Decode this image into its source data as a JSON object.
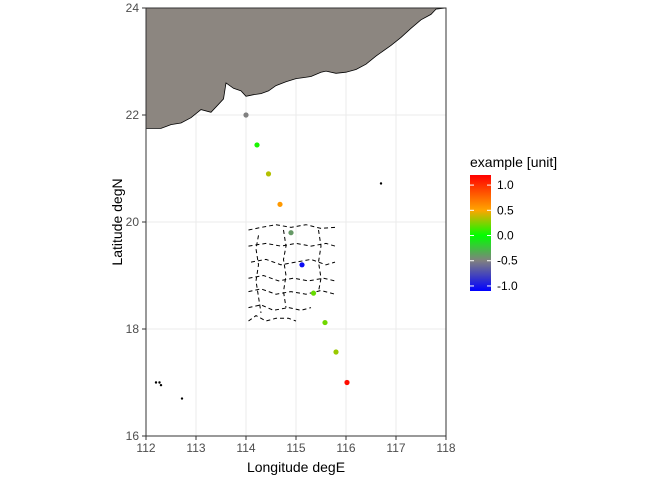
{
  "chart_data": {
    "type": "scatter",
    "xlabel": "Longitude degE",
    "ylabel": "Latitude degN",
    "xlim": [
      112,
      118
    ],
    "ylim": [
      16,
      24
    ],
    "x_ticks": [
      112,
      113,
      114,
      115,
      116,
      117,
      118
    ],
    "y_ticks": [
      16,
      18,
      20,
      22,
      24
    ],
    "grid": true,
    "legend": {
      "title": "example [unit]",
      "placement": "right",
      "range": [
        -1.1,
        1.2
      ],
      "ticks": [
        1.0,
        0.5,
        0.0,
        -0.5,
        -1.0
      ],
      "tick_labels": [
        "1.0",
        "0.5",
        "0.0",
        "-0.5",
        "-1.0"
      ],
      "gradient_colors": [
        "#ff0000",
        "#ffa500",
        "#00ff00",
        "#808080",
        "#0000ff"
      ]
    },
    "points": [
      {
        "lon": 114.0,
        "lat": 22.0,
        "value": -0.5
      },
      {
        "lon": 114.22,
        "lat": 21.44,
        "value": 0.05
      },
      {
        "lon": 114.45,
        "lat": 20.9,
        "value": 0.35
      },
      {
        "lon": 114.68,
        "lat": 20.33,
        "value": 0.55
      },
      {
        "lon": 114.9,
        "lat": 19.8,
        "value": -0.4
      },
      {
        "lon": 115.12,
        "lat": 19.2,
        "value": -1.05
      },
      {
        "lon": 115.35,
        "lat": 18.67,
        "value": 0.2
      },
      {
        "lon": 115.58,
        "lat": 18.12,
        "value": 0.22
      },
      {
        "lon": 115.8,
        "lat": 17.57,
        "value": 0.3
      },
      {
        "lon": 116.02,
        "lat": 17.0,
        "value": 1.15
      }
    ],
    "land_color": "#8c8680",
    "land_outline": [
      [
        112,
        24
      ],
      [
        118,
        24
      ],
      [
        117.8,
        23.98
      ],
      [
        117.7,
        23.88
      ],
      [
        117.5,
        23.78
      ],
      [
        117.3,
        23.62
      ],
      [
        117.1,
        23.45
      ],
      [
        116.9,
        23.3
      ],
      [
        116.6,
        23.1
      ],
      [
        116.4,
        22.95
      ],
      [
        116.2,
        22.85
      ],
      [
        116.0,
        22.8
      ],
      [
        115.8,
        22.78
      ],
      [
        115.6,
        22.82
      ],
      [
        115.5,
        22.8
      ],
      [
        115.3,
        22.72
      ],
      [
        115.15,
        22.7
      ],
      [
        115.0,
        22.68
      ],
      [
        114.8,
        22.62
      ],
      [
        114.6,
        22.55
      ],
      [
        114.45,
        22.45
      ],
      [
        114.3,
        22.4
      ],
      [
        114.15,
        22.38
      ],
      [
        114.0,
        22.35
      ],
      [
        113.9,
        22.45
      ],
      [
        113.75,
        22.5
      ],
      [
        113.6,
        22.6
      ],
      [
        113.55,
        22.3
      ],
      [
        113.45,
        22.2
      ],
      [
        113.3,
        22.05
      ],
      [
        113.1,
        22.1
      ],
      [
        112.9,
        21.95
      ],
      [
        112.7,
        21.85
      ],
      [
        112.5,
        21.82
      ],
      [
        112.3,
        21.75
      ],
      [
        112.0,
        21.75
      ]
    ],
    "islands": [
      [
        116.7,
        20.72
      ],
      [
        112.2,
        17.0
      ],
      [
        112.27,
        17.0
      ],
      [
        112.3,
        16.95
      ],
      [
        112.72,
        16.7
      ]
    ]
  }
}
